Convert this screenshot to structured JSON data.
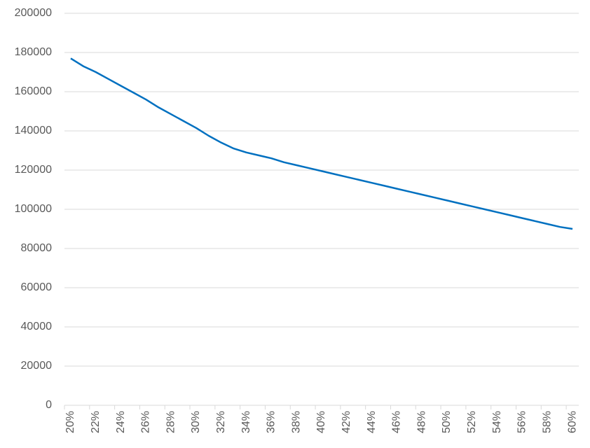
{
  "chart_data": {
    "type": "line",
    "categories": [
      "20%",
      null,
      "22%",
      null,
      "24%",
      null,
      "26%",
      null,
      "28%",
      null,
      "30%",
      null,
      "32%",
      null,
      "34%",
      null,
      "36%",
      null,
      "38%",
      null,
      "40%",
      null,
      "42%",
      null,
      "44%",
      null,
      "46%",
      null,
      "48%",
      null,
      "50%",
      null,
      "52%",
      null,
      "54%",
      null,
      "56%",
      null,
      "58%",
      null,
      "60%"
    ],
    "series": [
      {
        "color": "#0070c0",
        "values": [
          177000,
          173000,
          170000,
          166500,
          163000,
          159500,
          156000,
          152000,
          148500,
          145000,
          141500,
          137500,
          134000,
          131000,
          129000,
          127500,
          126000,
          124000,
          122500,
          121000,
          119500,
          118000,
          116500,
          115000,
          113500,
          112000,
          110500,
          109000,
          107500,
          106000,
          104500,
          103000,
          101500,
          100000,
          98500,
          97000,
          95500,
          94000,
          92500,
          91000,
          90000
        ]
      }
    ],
    "ylim": [
      0,
      200000
    ],
    "yticks": [
      0,
      20000,
      40000,
      60000,
      80000,
      100000,
      120000,
      140000,
      160000,
      180000,
      200000
    ],
    "grid": true
  }
}
